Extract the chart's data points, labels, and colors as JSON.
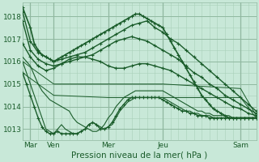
{
  "bg_color": "#c8e8d8",
  "plot_bg_color": "#c8e8d8",
  "grid_major_color": "#90b8a0",
  "grid_minor_color": "#a8d0b8",
  "line_color": "#1a5c2a",
  "xlabel": "Pression niveau de la mer( hPa )",
  "ylim": [
    1012.5,
    1018.6
  ],
  "yticks": [
    1013,
    1014,
    1015,
    1016,
    1017,
    1018
  ],
  "xlim": [
    0,
    120
  ],
  "xtick_positions": [
    4,
    16,
    44,
    72,
    112
  ],
  "xtick_labels": [
    "Mar",
    "Ven",
    "Mer",
    "Jeu",
    "Sam"
  ],
  "vline_positions": [
    4,
    16,
    44,
    72,
    112
  ],
  "series": [
    {
      "x": [
        0,
        4,
        6,
        8,
        10,
        12,
        14,
        16,
        18,
        20,
        22,
        24,
        26,
        28,
        30,
        32,
        34,
        36,
        38,
        40,
        42,
        44,
        46,
        48,
        50,
        52,
        54,
        56,
        58,
        60,
        62,
        64,
        66,
        68,
        70,
        72,
        74,
        76,
        78,
        80,
        82,
        84,
        86,
        88,
        90,
        92,
        94,
        96,
        98,
        100,
        102,
        104,
        106,
        108,
        110,
        112,
        114,
        116,
        118,
        120
      ],
      "y": [
        1018.4,
        1017.5,
        1016.8,
        1016.5,
        1016.3,
        1016.2,
        1016.1,
        1016.0,
        1016.1,
        1016.2,
        1016.3,
        1016.4,
        1016.5,
        1016.6,
        1016.7,
        1016.8,
        1016.9,
        1017.0,
        1017.1,
        1017.2,
        1017.3,
        1017.4,
        1017.5,
        1017.6,
        1017.7,
        1017.8,
        1017.9,
        1018.0,
        1018.1,
        1018.1,
        1018.0,
        1017.9,
        1017.8,
        1017.7,
        1017.6,
        1017.5,
        1017.2,
        1016.9,
        1016.6,
        1016.3,
        1016.0,
        1015.7,
        1015.4,
        1015.1,
        1014.8,
        1014.5,
        1014.3,
        1014.1,
        1013.9,
        1013.8,
        1013.7,
        1013.6,
        1013.5,
        1013.5,
        1013.5,
        1013.5,
        1013.5,
        1013.5,
        1013.5,
        1013.5
      ],
      "marker": true,
      "lw": 1.2
    },
    {
      "x": [
        0,
        4,
        8,
        12,
        16,
        20,
        24,
        28,
        32,
        36,
        40,
        44,
        48,
        52,
        56,
        60,
        64,
        68,
        72,
        76,
        80,
        84,
        88,
        92,
        96,
        100,
        104,
        108,
        112,
        116,
        120
      ],
      "y": [
        1018.2,
        1016.9,
        1016.4,
        1016.2,
        1016.0,
        1016.1,
        1016.2,
        1016.3,
        1016.4,
        1016.6,
        1016.8,
        1017.0,
        1017.2,
        1017.4,
        1017.6,
        1017.7,
        1017.8,
        1017.5,
        1017.3,
        1017.0,
        1016.8,
        1016.5,
        1016.2,
        1015.9,
        1015.6,
        1015.3,
        1015.0,
        1014.7,
        1014.4,
        1014.1,
        1013.8
      ],
      "marker": true,
      "lw": 1.0
    },
    {
      "x": [
        0,
        4,
        8,
        12,
        16,
        20,
        24,
        28,
        32,
        36,
        40,
        44,
        48,
        52,
        56,
        60,
        64,
        68,
        72,
        76,
        80,
        84,
        88,
        92,
        96,
        100,
        104,
        108,
        112,
        116,
        120
      ],
      "y": [
        1017.8,
        1016.5,
        1016.1,
        1015.9,
        1015.8,
        1015.9,
        1016.0,
        1016.1,
        1016.2,
        1016.3,
        1016.5,
        1016.7,
        1016.9,
        1017.0,
        1017.1,
        1017.0,
        1016.9,
        1016.7,
        1016.5,
        1016.3,
        1016.1,
        1015.8,
        1015.5,
        1015.3,
        1015.0,
        1014.8,
        1014.5,
        1014.3,
        1014.1,
        1013.9,
        1013.7
      ],
      "marker": true,
      "lw": 1.0
    },
    {
      "x": [
        0,
        4,
        8,
        12,
        16,
        20,
        24,
        28,
        32,
        36,
        40,
        44,
        48,
        52,
        56,
        60,
        64,
        68,
        72,
        76,
        80,
        84,
        88,
        92,
        96,
        100,
        104,
        108,
        112,
        116,
        120
      ],
      "y": [
        1016.8,
        1016.2,
        1015.8,
        1015.6,
        1015.7,
        1015.9,
        1016.1,
        1016.2,
        1016.2,
        1016.1,
        1016.0,
        1015.8,
        1015.7,
        1015.7,
        1015.8,
        1015.9,
        1015.9,
        1015.8,
        1015.7,
        1015.6,
        1015.4,
        1015.2,
        1015.0,
        1014.8,
        1014.6,
        1014.4,
        1014.2,
        1014.0,
        1013.9,
        1013.7,
        1013.6
      ],
      "marker": true,
      "lw": 1.0
    },
    {
      "x": [
        0,
        4,
        6,
        8,
        10,
        12,
        14,
        16,
        18,
        20,
        22,
        24,
        26,
        28,
        30,
        32,
        34,
        36,
        38,
        40,
        42,
        44,
        46,
        48,
        50,
        52,
        54,
        56,
        58,
        60,
        62,
        64,
        66,
        68,
        70,
        72,
        74,
        76,
        78,
        80,
        82,
        84,
        86,
        88,
        90,
        92,
        94,
        96,
        98,
        100,
        102,
        104,
        106,
        108,
        110,
        112,
        114,
        116,
        118,
        120
      ],
      "y": [
        1016.2,
        1015.8,
        1015.4,
        1015.0,
        1014.7,
        1014.5,
        1014.3,
        1014.2,
        1014.1,
        1014.0,
        1013.9,
        1013.8,
        1013.5,
        1013.3,
        1013.2,
        1013.1,
        1013.0,
        1012.9,
        1012.9,
        1013.0,
        1013.2,
        1013.5,
        1013.7,
        1014.0,
        1014.2,
        1014.4,
        1014.5,
        1014.6,
        1014.7,
        1014.7,
        1014.7,
        1014.7,
        1014.7,
        1014.7,
        1014.7,
        1014.7,
        1014.6,
        1014.5,
        1014.4,
        1014.3,
        1014.2,
        1014.1,
        1014.0,
        1013.9,
        1013.8,
        1013.8,
        1013.7,
        1013.7,
        1013.6,
        1013.6,
        1013.6,
        1013.6,
        1013.6,
        1013.5,
        1013.5,
        1013.5,
        1013.5,
        1013.5,
        1013.5,
        1013.5
      ],
      "marker": false,
      "lw": 0.8
    },
    {
      "x": [
        0,
        2,
        4,
        6,
        8,
        10,
        12,
        14,
        16,
        18,
        20,
        22,
        24,
        26,
        28,
        30,
        32,
        34,
        36,
        38,
        40,
        42,
        44,
        46,
        48,
        50,
        52,
        54,
        56,
        58,
        60,
        62,
        64,
        66,
        68,
        70,
        72,
        74,
        76,
        78,
        80,
        82,
        84,
        86,
        88,
        90,
        92,
        94,
        96,
        98,
        100,
        102,
        104,
        106,
        108,
        110,
        112,
        114,
        116,
        118,
        120
      ],
      "y": [
        1016.0,
        1015.5,
        1015.0,
        1014.5,
        1014.0,
        1013.5,
        1013.0,
        1012.9,
        1012.8,
        1013.0,
        1013.2,
        1013.0,
        1012.9,
        1012.8,
        1012.8,
        1012.9,
        1013.0,
        1013.2,
        1013.3,
        1013.2,
        1013.1,
        1013.0,
        1013.1,
        1013.2,
        1013.5,
        1013.8,
        1014.0,
        1014.2,
        1014.3,
        1014.4,
        1014.4,
        1014.4,
        1014.4,
        1014.4,
        1014.4,
        1014.4,
        1014.4,
        1014.3,
        1014.2,
        1014.1,
        1014.0,
        1013.9,
        1013.8,
        1013.8,
        1013.7,
        1013.7,
        1013.6,
        1013.6,
        1013.6,
        1013.5,
        1013.5,
        1013.5,
        1013.5,
        1013.5,
        1013.5,
        1013.5,
        1013.5,
        1013.5,
        1013.5,
        1013.5,
        1013.5
      ],
      "marker": false,
      "lw": 0.8
    },
    {
      "x": [
        0,
        2,
        4,
        6,
        8,
        10,
        12,
        14,
        16,
        18,
        20,
        22,
        24,
        26,
        28,
        30,
        32,
        34,
        36,
        38,
        40,
        42,
        44,
        46,
        48,
        50,
        52,
        54,
        56,
        58,
        60,
        62,
        64,
        66,
        68,
        70,
        72,
        74,
        76,
        78,
        80,
        82,
        84,
        86,
        88,
        90,
        92,
        94,
        96,
        98,
        100,
        102,
        104,
        106,
        108,
        110,
        112,
        114,
        116,
        118,
        120
      ],
      "y": [
        1015.5,
        1015.0,
        1014.5,
        1014.0,
        1013.5,
        1013.1,
        1012.9,
        1012.8,
        1012.8,
        1012.9,
        1012.8,
        1012.8,
        1012.8,
        1012.8,
        1012.8,
        1012.9,
        1013.0,
        1013.2,
        1013.3,
        1013.2,
        1013.0,
        1013.0,
        1013.1,
        1013.3,
        1013.6,
        1013.9,
        1014.1,
        1014.3,
        1014.4,
        1014.4,
        1014.4,
        1014.4,
        1014.4,
        1014.4,
        1014.4,
        1014.4,
        1014.3,
        1014.2,
        1014.1,
        1014.0,
        1013.9,
        1013.8,
        1013.8,
        1013.7,
        1013.7,
        1013.6,
        1013.6,
        1013.6,
        1013.5,
        1013.5,
        1013.5,
        1013.5,
        1013.5,
        1013.5,
        1013.5,
        1013.5,
        1013.5,
        1013.5,
        1013.5,
        1013.5,
        1013.5
      ],
      "marker": true,
      "lw": 1.0
    },
    {
      "x": [
        0,
        16,
        44,
        72,
        112,
        120
      ],
      "y": [
        1016.0,
        1015.0,
        1015.0,
        1015.0,
        1014.8,
        1013.6
      ],
      "marker": false,
      "lw": 0.7
    },
    {
      "x": [
        0,
        16,
        44,
        72,
        112,
        120
      ],
      "y": [
        1015.5,
        1014.5,
        1014.4,
        1014.4,
        1014.4,
        1013.5
      ],
      "marker": false,
      "lw": 0.7
    }
  ]
}
